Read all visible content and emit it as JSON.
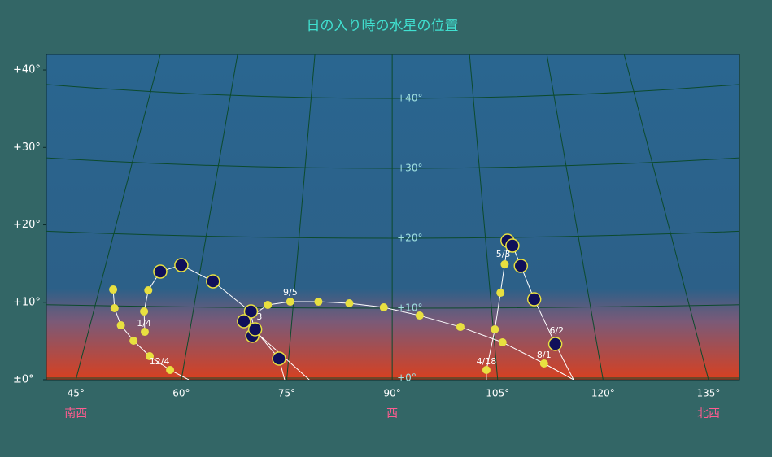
{
  "chart_data": {
    "type": "scatter",
    "title": "日の入り時の水星の位置",
    "xlim": [
      40.8,
      139.4
    ],
    "ylim": [
      0,
      42
    ],
    "xticks": [
      {
        "value": 45,
        "label": "45°"
      },
      {
        "value": 60,
        "label": "60°"
      },
      {
        "value": 75,
        "label": "75°"
      },
      {
        "value": 90,
        "label": "90°"
      },
      {
        "value": 105,
        "label": "105°"
      },
      {
        "value": 120,
        "label": "120°"
      },
      {
        "value": 135,
        "label": "135°"
      }
    ],
    "yticks": [
      {
        "value": 0,
        "label": "±0°"
      },
      {
        "value": 10,
        "label": "+10°"
      },
      {
        "value": 20,
        "label": "+20°"
      },
      {
        "value": 30,
        "label": "+30°"
      },
      {
        "value": 40,
        "label": "+40°"
      }
    ],
    "inner_ticks": [
      {
        "value": 0,
        "label": "+0°"
      },
      {
        "value": 10,
        "label": "+10°"
      },
      {
        "value": 20,
        "label": "+20°"
      },
      {
        "value": 30,
        "label": "+30°"
      },
      {
        "value": 40,
        "label": "+40°"
      }
    ],
    "directions": [
      {
        "x": 45,
        "label": "南西"
      },
      {
        "x": 90,
        "label": "西"
      },
      {
        "x": 135,
        "label": "北西"
      }
    ],
    "grid": true,
    "series": [
      {
        "kind": "line",
        "color": "#ffffff",
        "x": [
          61.05,
          58.4,
          55.5,
          53.2,
          51.4,
          50.5,
          50.3,
          null,
          54.8,
          54.7,
          55.3,
          57.0,
          60.0,
          64.5,
          69.8,
          70.4,
          73.9,
          74.7,
          null,
          78.2,
          68.9,
          72.3,
          75.5,
          79.5,
          83.9,
          88.8,
          93.9,
          99.7,
          105.7,
          111.6,
          115.8,
          null,
          103.4,
          103.4,
          104.6,
          105.4,
          106.0,
          106.4,
          107.1,
          108.3,
          110.2,
          113.2,
          115.8
        ],
        "y": [
          0,
          1.26,
          3.04,
          5.04,
          7.03,
          9.24,
          11.65,
          null,
          6.19,
          8.82,
          11.55,
          13.96,
          14.8,
          12.7,
          8.82,
          6.51,
          2.73,
          0,
          null,
          0,
          7.56,
          9.66,
          10.08,
          10.08,
          9.87,
          9.34,
          8.29,
          6.82,
          4.83,
          2.1,
          0,
          null,
          0,
          1.26,
          6.51,
          11.23,
          14.91,
          17.53,
          17.32,
          14.7,
          10.39,
          4.62,
          0
        ]
      },
      {
        "kind": "marker",
        "color": "#e8e040",
        "x": [
          58.4,
          55.5,
          53.2,
          51.4,
          50.5,
          50.3,
          54.8,
          54.7,
          55.3,
          72.3,
          75.5,
          79.5,
          83.9,
          88.8,
          93.9,
          99.7,
          104.6,
          105.7,
          111.6,
          103.4,
          105.4,
          106.0
        ],
        "y": [
          1.26,
          3.04,
          5.04,
          7.03,
          9.24,
          11.65,
          6.19,
          8.82,
          11.55,
          9.66,
          10.08,
          10.08,
          9.87,
          9.34,
          8.29,
          6.82,
          6.51,
          4.83,
          2.1,
          1.26,
          11.23,
          14.91
        ]
      },
      {
        "kind": "marker",
        "color": "#10105a",
        "x": [
          57.0,
          60.0,
          64.5,
          69.9,
          68.9,
          70.1,
          70.5,
          73.9,
          106.4,
          107.1,
          108.3,
          110.2,
          113.2
        ],
        "y": [
          13.96,
          14.8,
          12.7,
          8.82,
          7.56,
          5.67,
          6.51,
          2.73,
          17.95,
          17.32,
          14.7,
          10.39,
          4.62
        ]
      }
    ],
    "annotations": [
      {
        "x": 56.9,
        "y": 2.31,
        "text": "12/4"
      },
      {
        "x": 54.7,
        "y": 7.24,
        "text": "1/4"
      },
      {
        "x": 75.5,
        "y": 11.23,
        "text": "9/5"
      },
      {
        "x": 71.1,
        "y": 8.08,
        "text": "3"
      },
      {
        "x": 105.8,
        "y": 16.17,
        "text": "5/3"
      },
      {
        "x": 103.4,
        "y": 2.31,
        "text": "4/18"
      },
      {
        "x": 111.6,
        "y": 3.15,
        "text": "8/1"
      },
      {
        "x": 113.4,
        "y": 6.3,
        "text": "6/2"
      }
    ]
  }
}
